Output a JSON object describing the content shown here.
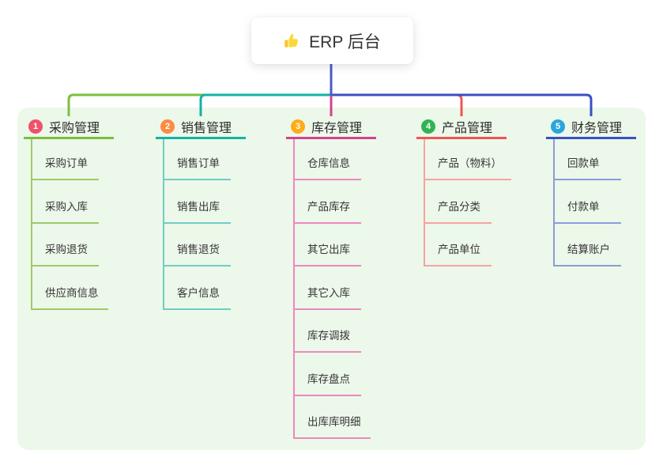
{
  "root": {
    "icon": "thumbs-up",
    "label": "ERP 后台"
  },
  "branches": [
    {
      "num": "1",
      "label": "采购管理",
      "children": [
        "采购订单",
        "采购入库",
        "采购退货",
        "供应商信息"
      ]
    },
    {
      "num": "2",
      "label": "销售管理",
      "children": [
        "销售订单",
        "销售出库",
        "销售退货",
        "客户信息"
      ]
    },
    {
      "num": "3",
      "label": "库存管理",
      "children": [
        "仓库信息",
        "产品库存",
        "其它出库",
        "其它入库",
        "库存调拨",
        "库存盘点",
        "出库库明细"
      ]
    },
    {
      "num": "4",
      "label": "产品管理",
      "children": [
        "产品（物料）",
        "产品分类",
        "产品单位"
      ]
    },
    {
      "num": "5",
      "label": "财务管理",
      "children": [
        "回款单",
        "付款单",
        "结算账户"
      ]
    }
  ],
  "colors": {
    "panel_bg": "#ecf8ea",
    "card_bg": "#ffffff",
    "stem": "#4c5bc5",
    "branches": [
      {
        "line": "#7cbf3f",
        "light": "#9ccb6a",
        "badge": "#f0516b"
      },
      {
        "line": "#14b2a5",
        "light": "#72ccc3",
        "badge": "#fb8c42"
      },
      {
        "line": "#d4418e",
        "light": "#ee87bd",
        "badge": "#feac19"
      },
      {
        "line": "#f05454",
        "light": "#f7a3a1",
        "badge": "#32b353"
      },
      {
        "line": "#3b50c1",
        "light": "#8b9cd9",
        "badge": "#2ba5de"
      }
    ]
  }
}
